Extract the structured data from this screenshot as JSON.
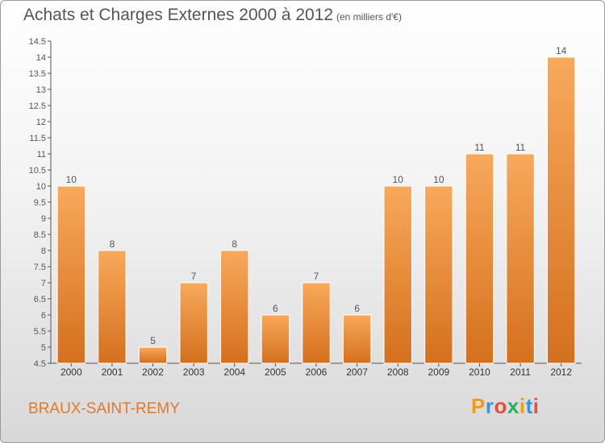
{
  "chart_data": {
    "type": "bar",
    "title": "Achats et Charges Externes 2000 à 2012",
    "subtitle": "(en milliers d'€)",
    "categories": [
      "2000",
      "2001",
      "2002",
      "2003",
      "2004",
      "2005",
      "2006",
      "2007",
      "2008",
      "2009",
      "2010",
      "2011",
      "2012"
    ],
    "values": [
      10,
      8,
      5,
      7,
      8,
      6,
      7,
      6,
      10,
      10,
      11,
      11,
      14
    ],
    "data_labels": [
      "10",
      "8",
      "5",
      "7",
      "8",
      "6",
      "7",
      "6",
      "10",
      "10",
      "11",
      "11",
      "14"
    ],
    "ylim": [
      4.5,
      14.5
    ],
    "yticks": [
      4.5,
      5,
      5.5,
      6,
      6.5,
      7,
      7.5,
      8,
      8.5,
      9,
      9.5,
      10,
      10.5,
      11,
      11.5,
      12,
      12.5,
      13,
      13.5,
      14,
      14.5
    ],
    "ytick_labels": [
      "4.5",
      "5",
      "5.5",
      "6",
      "6.5",
      "7",
      "7.5",
      "8",
      "8.5",
      "9",
      "9.5",
      "10",
      "10.5",
      "11",
      "11.5",
      "12",
      "12.5",
      "13",
      "13.5",
      "14",
      "14.5"
    ],
    "xlabel": "",
    "ylabel": "",
    "grid": false,
    "colors": {
      "bar": "#f0913a",
      "bar_light": "#f8a95a",
      "bar_dark": "#d4701e",
      "text": "#555555"
    }
  },
  "footer": {
    "place": "BRAUX-SAINT-REMY",
    "logo_letters": [
      "P",
      "r",
      "o",
      "x",
      "i",
      "t",
      "i"
    ],
    "logo_colors": [
      "#f39c12",
      "#3498db",
      "#e74c3c",
      "#27ae60",
      "#f39c12",
      "#3498db",
      "#e74c3c"
    ]
  }
}
